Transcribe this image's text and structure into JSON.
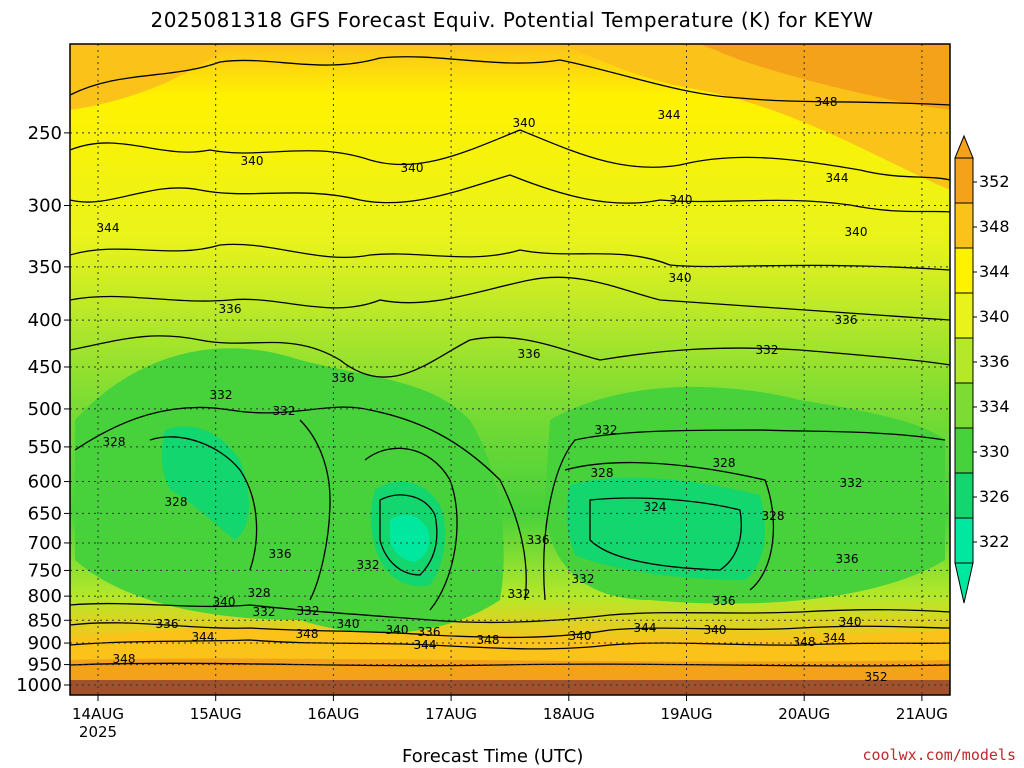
{
  "chart_data": {
    "type": "heatmap",
    "title": "2025081318 GFS Forecast Equiv. Potential Temperature (K) for KEYW",
    "xlabel": "Forecast Time (UTC)",
    "ylabel": "",
    "x_ticks": [
      "14AUG\n2025",
      "15AUG",
      "16AUG",
      "17AUG",
      "18AUG",
      "19AUG",
      "20AUG",
      "21AUG"
    ],
    "y_ticks": [
      "250",
      "300",
      "350",
      "400",
      "450",
      "500",
      "550",
      "600",
      "650",
      "700",
      "750",
      "800",
      "850",
      "900",
      "950",
      "1000"
    ],
    "y_values_hpa": [
      250,
      300,
      350,
      400,
      450,
      500,
      550,
      600,
      650,
      700,
      750,
      800,
      850,
      900,
      950,
      1000
    ],
    "ylim": [
      1000,
      200
    ],
    "y_scale": "log (pressure)",
    "grid": true,
    "colorbar": {
      "labels": [
        "352",
        "348",
        "344",
        "340",
        "336",
        "334",
        "330",
        "326",
        "322"
      ],
      "colors": [
        "#f4a21a",
        "#fbc21a",
        "#fff200",
        "#e9f31b",
        "#b6e82a",
        "#7cdc33",
        "#47d13b",
        "#14d66e",
        "#00e8a0"
      ]
    },
    "contour_labels": [
      "348",
      "344",
      "340",
      "340",
      "340",
      "344",
      "340",
      "344",
      "340",
      "340",
      "336",
      "336",
      "332",
      "336",
      "336",
      "332",
      "332",
      "332",
      "328",
      "328",
      "328",
      "324",
      "328",
      "332",
      "328",
      "332",
      "336",
      "336",
      "332",
      "336",
      "328",
      "340",
      "332",
      "336",
      "332",
      "332",
      "336",
      "344",
      "340",
      "348",
      "340",
      "336",
      "344",
      "348",
      "340",
      "344",
      "340",
      "348",
      "344",
      "340",
      "348",
      "352"
    ]
  },
  "credit": "coolwx.com/models"
}
